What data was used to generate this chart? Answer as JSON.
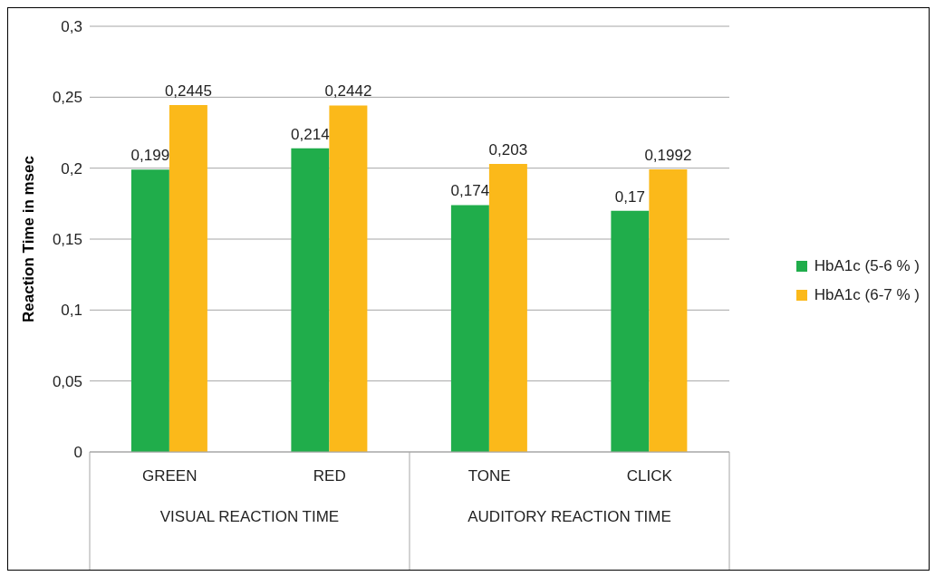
{
  "chart_data": {
    "type": "bar",
    "ylabel": "Reaction Time in msec",
    "categories": [
      "GREEN",
      "RED",
      "TONE",
      "CLICK"
    ],
    "series": [
      {
        "name": "HbA1c (5-6 % )",
        "color": "#20ad4b",
        "values": [
          0.199,
          0.214,
          0.174,
          0.17
        ],
        "value_labels": [
          "0,199",
          "0,214",
          "0,174",
          "0,17"
        ]
      },
      {
        "name": "HbA1c (6-7 % )",
        "color": "#fbb91a",
        "values": [
          0.2445,
          0.2442,
          0.203,
          0.1992
        ],
        "value_labels": [
          "0,2445",
          "0,2442",
          "0,203",
          "0,1992"
        ]
      }
    ],
    "ylim": [
      0,
      0.3
    ],
    "yticks": [
      {
        "value": 0,
        "label": "0"
      },
      {
        "value": 0.05,
        "label": "0,05"
      },
      {
        "value": 0.1,
        "label": "0,1"
      },
      {
        "value": 0.15,
        "label": "0,15"
      },
      {
        "value": 0.2,
        "label": "0,2"
      },
      {
        "value": 0.25,
        "label": "0,25"
      },
      {
        "value": 0.3,
        "label": "0,3"
      }
    ],
    "grid": "y",
    "legend": "right",
    "annotations": [
      "VISUAL REACTION TIME",
      "AUDITORY REACTION TIME"
    ]
  }
}
